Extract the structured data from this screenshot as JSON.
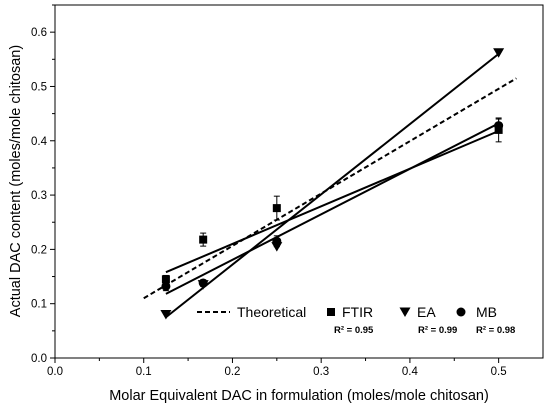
{
  "chart_data": {
    "type": "scatter",
    "xlabel": "Molar Equivalent DAC in formulation (moles/mole chitosan)",
    "ylabel": "Actual DAC content (moles/mole chitosan)",
    "xlim": [
      0.0,
      0.55
    ],
    "ylim": [
      0.0,
      0.65
    ],
    "xticks": [
      "0.0",
      "0.1",
      "0.2",
      "0.3",
      "0.4",
      "0.5"
    ],
    "yticks": [
      "0.0",
      "0.1",
      "0.2",
      "0.3",
      "0.4",
      "0.5",
      "0.6"
    ],
    "grid": false,
    "legend_position": "bottom-right",
    "reference_line": {
      "name": "Theoretical",
      "style": "dashed",
      "x": [
        0.1,
        0.52
      ],
      "y": [
        0.11,
        0.515
      ]
    },
    "series": [
      {
        "name": "FTIR",
        "marker": "square",
        "x": [
          0.125,
          0.167,
          0.25,
          0.5
        ],
        "y": [
          0.145,
          0.218,
          0.276,
          0.42
        ],
        "err": [
          0.007,
          0.012,
          0.022,
          0.022
        ],
        "fit": {
          "x": [
            0.125,
            0.5
          ],
          "y": [
            0.158,
            0.418
          ]
        },
        "r2": "R² = 0.95"
      },
      {
        "name": "EA",
        "marker": "triangle-down",
        "x": [
          0.125,
          0.167,
          0.25,
          0.5
        ],
        "y": [
          0.08,
          0.135,
          0.205,
          0.562
        ],
        "err": [
          0,
          0,
          0,
          0
        ],
        "fit": {
          "x": [
            0.125,
            0.5
          ],
          "y": [
            0.075,
            0.56
          ]
        },
        "r2": "R² = 0.99"
      },
      {
        "name": "MB",
        "marker": "circle",
        "x": [
          0.125,
          0.167,
          0.25,
          0.5
        ],
        "y": [
          0.132,
          0.138,
          0.215,
          0.428
        ],
        "err": [
          0.008,
          0.006,
          0.01,
          0.012
        ],
        "fit": {
          "x": [
            0.125,
            0.5
          ],
          "y": [
            0.118,
            0.432
          ]
        },
        "r2": "R² = 0.98"
      }
    ]
  }
}
